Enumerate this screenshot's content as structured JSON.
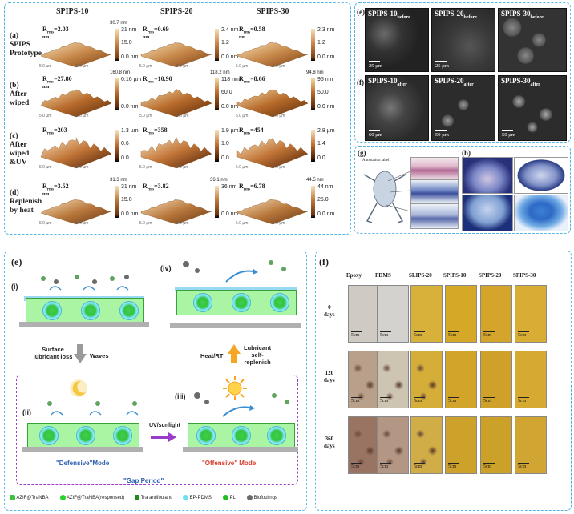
{
  "top_left": {
    "columns": [
      "SPIPS-10",
      "SPIPS-20",
      "SPIPS-30"
    ],
    "rows": [
      {
        "label_lines": [
          "(a)",
          "SPIPS",
          "Prototype"
        ],
        "cells": [
          {
            "r": "R",
            "sub": "rms",
            "val": "=2.03",
            "unit": "nm",
            "cbar": [
              "31 nm",
              "15.0",
              "0.0 nm"
            ],
            "cbar_top": "30.7 nm"
          },
          {
            "r": "R",
            "sub": "rms",
            "val": "=0.69",
            "unit": "nm",
            "cbar": [
              "2.4 nm",
              "1.2",
              "0.0 nm"
            ],
            "cbar_top": ""
          },
          {
            "r": "R",
            "sub": "rms",
            "val": "=0.58",
            "unit": "nm",
            "cbar": [
              "2.3 nm",
              "1.2",
              "0.0 nm"
            ],
            "cbar_top": ""
          }
        ]
      },
      {
        "label_lines": [
          "(b)",
          "After",
          "wiped"
        ],
        "cells": [
          {
            "r": "R",
            "sub": "rms",
            "val": "=27.80",
            "unit": "nm",
            "cbar": [
              "0.16 µm",
              "",
              "0.0 nm"
            ],
            "cbar_top": "160.8 nm"
          },
          {
            "r": "R",
            "sub": "rms",
            "val": "=10.90",
            "unit": "",
            "cbar": [
              "118 nm",
              "60.0",
              "0.0 nm"
            ],
            "cbar_top": "118.2 nm"
          },
          {
            "r": "R",
            "sub": "rms",
            "val": "=8.66",
            "unit": "",
            "cbar": [
              "95 nm",
              "50.0",
              "0.0 nm"
            ],
            "cbar_top": "94.8 nm"
          }
        ]
      },
      {
        "label_lines": [
          "(c)",
          "After",
          "wiped",
          "&UV"
        ],
        "cells": [
          {
            "r": "R",
            "sub": "rms",
            "val": "=203",
            "unit": "",
            "cbar": [
              "1.3 µm",
              "0.6",
              "0.0"
            ],
            "cbar_top": ""
          },
          {
            "r": "R",
            "sub": "rms",
            "val": "=358",
            "unit": "",
            "cbar": [
              "1.9 µm",
              "1.0",
              "0.0"
            ],
            "cbar_top": ""
          },
          {
            "r": "R",
            "sub": "rms",
            "val": "=454",
            "unit": "",
            "cbar": [
              "2.8 µm",
              "1.4",
              "0.0"
            ],
            "cbar_top": ""
          }
        ]
      },
      {
        "label_lines": [
          "(d)",
          "Replenish",
          "by heat"
        ],
        "cells": [
          {
            "r": "R",
            "sub": "rms",
            "val": "=3.52",
            "unit": "nm",
            "cbar": [
              "31 nm",
              "15.0",
              "0.0 nm"
            ],
            "cbar_top": "31.3 nm"
          },
          {
            "r": "R",
            "sub": "rms",
            "val": "=3.82",
            "unit": "",
            "cbar": [
              "36 nm",
              "",
              "0.0 nm"
            ],
            "cbar_top": "36.1 nm"
          },
          {
            "r": "R",
            "sub": "rms",
            "val": "=6.78",
            "unit": "",
            "cbar": [
              "44 nm",
              "25.0",
              "0.0 nm"
            ],
            "cbar_top": "44.5 nm"
          }
        ]
      }
    ],
    "axis_tick": "5.0 µm"
  },
  "sem": {
    "e_label": "(e)",
    "f_label": "(f)",
    "row_e": [
      {
        "name": "SPIPS-10",
        "sub": "before",
        "scale": "25 µm"
      },
      {
        "name": "SPIPS-20",
        "sub": "before",
        "scale": "25 µm"
      },
      {
        "name": "SPIPS-30",
        "sub": "before",
        "scale": ""
      }
    ],
    "row_f": [
      {
        "name": "SPIPS-10",
        "sub": "after",
        "scale": "60 µm"
      },
      {
        "name": "SPIPS-20",
        "sub": "after",
        "scale": "50 µm"
      },
      {
        "name": "SPIPS-30",
        "sub": "after",
        "scale": "50 µm"
      }
    ]
  },
  "histo": {
    "g_label": "(g)",
    "h_label": "(h)",
    "g_caption": "Annotation label"
  },
  "scheme": {
    "label": "(e)",
    "steps": {
      "i": "(i)",
      "ii": "(ii)",
      "iii": "(iii)",
      "iv": "(iv)"
    },
    "arrow_down_left": "Surface lubricant loss",
    "waves": "Waves",
    "heat": "Heat/RT",
    "lub_lines": [
      "Lubricant",
      "self-",
      "replenish"
    ],
    "uv": "UV/sunlight",
    "defensive": "\"Defensive\"Mode",
    "offensive": "\"Offensive\" Mode",
    "gap": "\"Gap Period\"",
    "legend": [
      "AZIF@TraNBA",
      "AZIF@TraNBA(responsed)",
      "Tra antifoulant",
      "EP-PDMS",
      "PL",
      "Biofoulings"
    ]
  },
  "photos": {
    "label": "(f)",
    "columns": [
      "Epoxy",
      "PDMS",
      "SLIPS-20",
      "SPIPS-10",
      "SPIPS-20",
      "SPIPS-30"
    ],
    "rows": [
      {
        "lines": [
          "0",
          "days"
        ]
      },
      {
        "lines": [
          "120",
          "days"
        ]
      },
      {
        "lines": [
          "360",
          "days"
        ]
      }
    ],
    "scale": "5cm"
  },
  "colors": {
    "dash": "#58b6e6",
    "coat": "#aaf5a4",
    "sub": "#b0b0b0",
    "gap": "#9a3cc8"
  }
}
